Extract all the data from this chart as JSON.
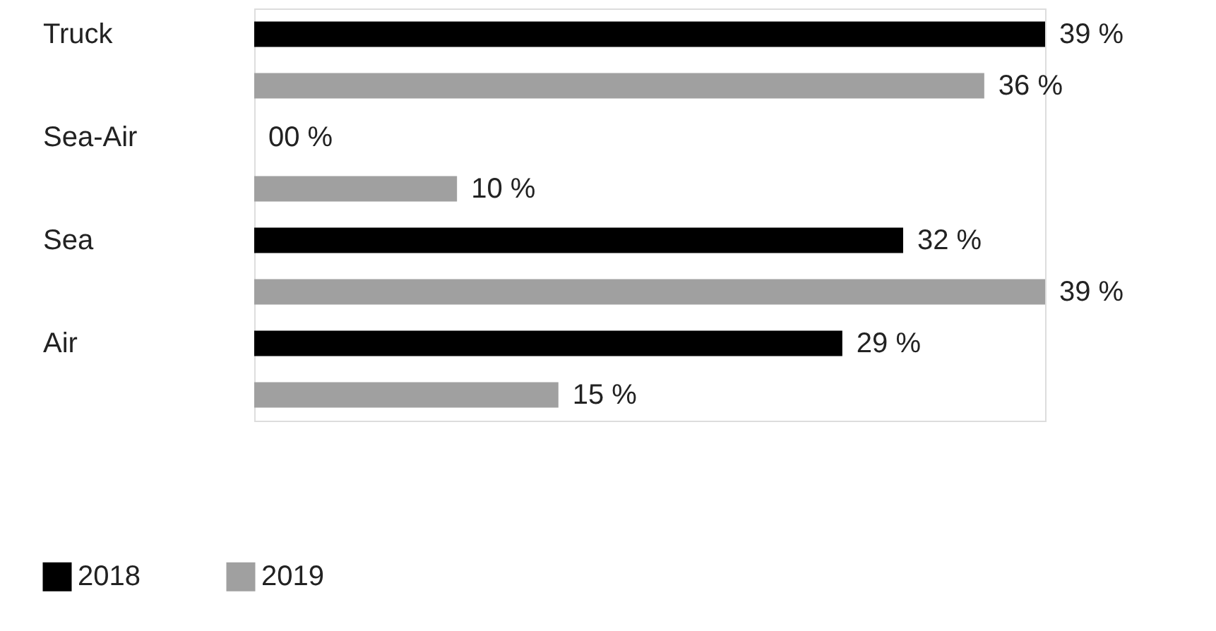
{
  "chart_data": {
    "type": "bar",
    "orientation": "horizontal",
    "categories": [
      "Truck",
      "Sea-Air",
      "Sea",
      "Air"
    ],
    "series": [
      {
        "name": "2018",
        "color": "#000000",
        "values": [
          39,
          0,
          32,
          29
        ],
        "value_labels": [
          "39 %",
          "00 %",
          "32 %",
          "29 %"
        ]
      },
      {
        "name": "2019",
        "color": "#a0a0a0",
        "values": [
          36,
          10,
          39,
          15
        ],
        "value_labels": [
          "36 %",
          "10 %",
          "39 %",
          "15 %"
        ]
      }
    ],
    "legend": "bottom left",
    "grid": false
  }
}
